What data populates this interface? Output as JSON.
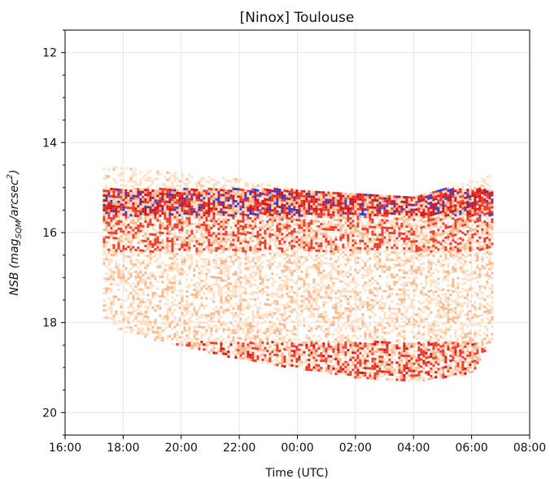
{
  "chart_data": {
    "type": "heatmap",
    "title": "[Ninox] Toulouse",
    "xlabel": "Time (UTC)",
    "ylabel": {
      "prefix": "NSB (mag",
      "subscript": "SQM",
      "middle": "/arcsec",
      "superscript": "2",
      "suffix": ")"
    },
    "x_ticks": [
      "16:00",
      "18:00",
      "20:00",
      "22:00",
      "00:00",
      "02:00",
      "04:00",
      "06:00",
      "08:00"
    ],
    "xlim_hours": [
      16,
      32
    ],
    "y_ticks": [
      12,
      14,
      16,
      18,
      20
    ],
    "ylim": [
      11.5,
      20.5
    ],
    "y_inverted": true,
    "grid": true,
    "colormap": [
      "#fde0c5",
      "#f9b98e",
      "#ef3b2c",
      "#d0141a",
      "#2b3cd8"
    ],
    "density_region": {
      "start_hour": 17.3,
      "end_hour": 30.75,
      "upper_edge": [
        {
          "hour": 17.3,
          "nsb": 14.5
        },
        {
          "hour": 22.0,
          "nsb": 14.8
        },
        {
          "hour": 24.0,
          "nsb": 15.05
        },
        {
          "hour": 28.0,
          "nsb": 15.2
        },
        {
          "hour": 30.7,
          "nsb": 14.7
        }
      ],
      "lower_edge": [
        {
          "hour": 17.3,
          "nsb": 17.9
        },
        {
          "hour": 18.0,
          "nsb": 18.2
        },
        {
          "hour": 22.0,
          "nsb": 18.8
        },
        {
          "hour": 26.0,
          "nsb": 19.2
        },
        {
          "hour": 28.0,
          "nsb": 19.3
        },
        {
          "hour": 30.0,
          "nsb": 19.1
        },
        {
          "hour": 30.7,
          "nsb": 18.3
        }
      ],
      "dense_bands": [
        {
          "from_nsb": 15.0,
          "to_nsb": 15.6,
          "weight": 0.9
        },
        {
          "from_nsb": 15.6,
          "to_nsb": 16.4,
          "weight": 0.55
        },
        {
          "from_nsb": 16.4,
          "to_nsb": 18.4,
          "weight": 0.28
        },
        {
          "from_nsb": 18.4,
          "to_nsb": 19.3,
          "weight": 0.6
        }
      ]
    }
  }
}
